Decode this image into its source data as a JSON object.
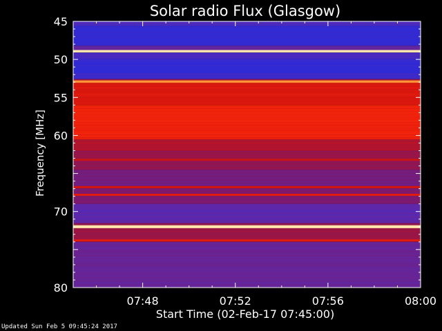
{
  "chart_data": {
    "type": "heatmap",
    "title": "Solar radio Flux (Glasgow)",
    "ylabel": "Frequency [MHz]",
    "xlabel": "Start Time (02-Feb-17 07:45:00)",
    "ylim": [
      45,
      80
    ],
    "y_inverted": true,
    "y_ticks": [
      45,
      50,
      55,
      60,
      70,
      80
    ],
    "x_start_minutes": 0,
    "x_end_minutes": 15,
    "x_ticks": [
      {
        "minutes": 3,
        "label": "07:48"
      },
      {
        "minutes": 7,
        "label": "07:52"
      },
      {
        "minutes": 11,
        "label": "07:56"
      },
      {
        "minutes": 15,
        "label": "08:00"
      }
    ],
    "colormap": [
      "#2a2ad8",
      "#5a2ab0",
      "#7a1a70",
      "#a0143c",
      "#d2140f",
      "#ff2a0a",
      "#ff9a3a",
      "#ffe8b0"
    ],
    "bands": [
      {
        "from": 45.0,
        "to": 45.6,
        "level": 0.1
      },
      {
        "from": 45.6,
        "to": 48.2,
        "level": 0.02
      },
      {
        "from": 48.2,
        "to": 48.8,
        "level": 0.18
      },
      {
        "from": 48.8,
        "to": 49.1,
        "level": 0.98
      },
      {
        "from": 49.1,
        "to": 49.9,
        "level": 0.08
      },
      {
        "from": 49.9,
        "to": 51.8,
        "level": 0.02
      },
      {
        "from": 51.8,
        "to": 52.6,
        "level": 0.05
      },
      {
        "from": 52.6,
        "to": 52.8,
        "level": 0.45
      },
      {
        "from": 52.8,
        "to": 53.1,
        "level": 0.8
      },
      {
        "from": 53.1,
        "to": 56.0,
        "level": 0.6
      },
      {
        "from": 56.0,
        "to": 60.5,
        "level": 0.66
      },
      {
        "from": 60.5,
        "to": 62.0,
        "level": 0.48
      },
      {
        "from": 62.0,
        "to": 64.5,
        "level": 0.38
      },
      {
        "from": 64.5,
        "to": 67.0,
        "level": 0.26
      },
      {
        "from": 67.0,
        "to": 69.0,
        "level": 0.3
      },
      {
        "from": 69.0,
        "to": 71.5,
        "level": 0.15
      },
      {
        "from": 71.5,
        "to": 71.8,
        "level": 0.35
      },
      {
        "from": 71.8,
        "to": 72.2,
        "level": 0.95
      },
      {
        "from": 72.2,
        "to": 74.0,
        "level": 0.4
      },
      {
        "from": 74.0,
        "to": 80.0,
        "level": 0.2
      }
    ],
    "lines": [
      {
        "freq": 48.9,
        "level": 1.0
      },
      {
        "freq": 52.9,
        "level": 0.85
      },
      {
        "freq": 63.2,
        "level": 0.55
      },
      {
        "freq": 66.8,
        "level": 0.58
      },
      {
        "freq": 67.8,
        "level": 0.62
      },
      {
        "freq": 72.0,
        "level": 1.0
      },
      {
        "freq": 73.8,
        "level": 0.62
      }
    ]
  },
  "footer": {
    "updated_text": "Updated Sun Feb  5 09:45:24 2017"
  }
}
